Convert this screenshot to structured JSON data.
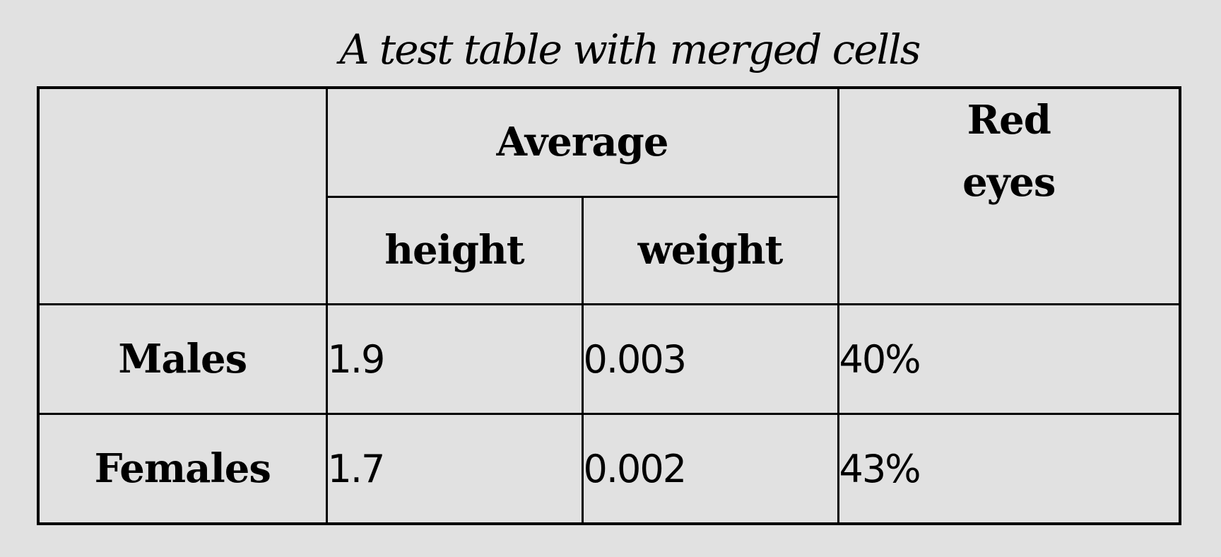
{
  "table": {
    "caption": "A test table with merged cells",
    "header": {
      "group_label": "Average",
      "sub_labels": [
        "height",
        "weight"
      ],
      "red_eyes_line1": "Red",
      "red_eyes_line2": "eyes"
    },
    "rows": [
      {
        "label": "Males",
        "height": "1.9",
        "weight": "0.003",
        "red_eyes": "40%"
      },
      {
        "label": "Females",
        "height": "1.7",
        "weight": "0.002",
        "red_eyes": "43%"
      }
    ]
  }
}
